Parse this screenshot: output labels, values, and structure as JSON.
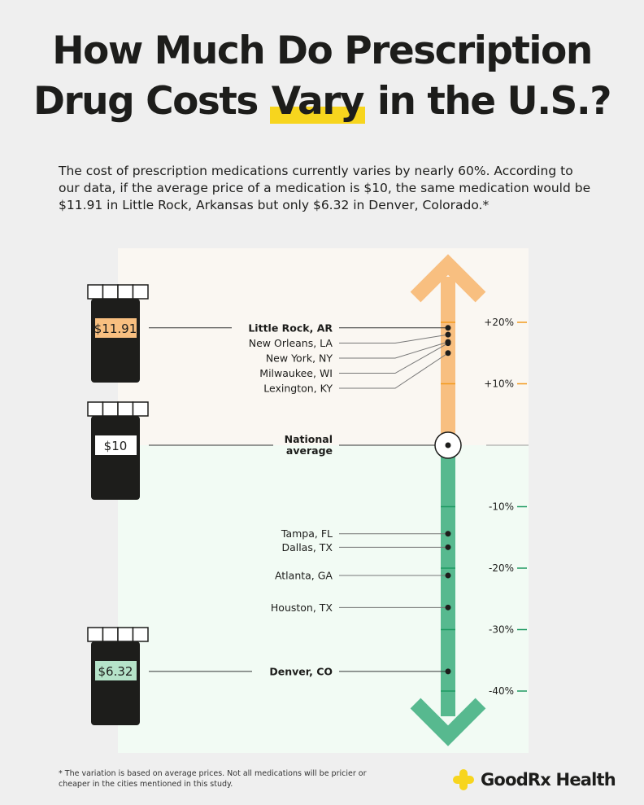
{
  "header": {
    "title_line1": "How Much Do Prescription",
    "title_line2_pre": "Drug Costs ",
    "title_highlight": "Vary",
    "title_line2_post": " in the U.S.?",
    "subtitle": "The cost of prescription medications currently varies by nearly 60%. According to our data, if the average price of a medication is $10, the same medication would be $11.91 in Little Rock, Arkansas but only $6.32 in Denver, Colorado.*"
  },
  "chart_data": {
    "type": "scatter",
    "axis": "percent difference from national average",
    "ylim": [
      -48,
      30
    ],
    "ticks": [
      {
        "value": 20,
        "label": "+20%"
      },
      {
        "value": 10,
        "label": "+10%"
      },
      {
        "value": -10,
        "label": "-10%"
      },
      {
        "value": -20,
        "label": "-20%"
      },
      {
        "value": -30,
        "label": "-30%"
      },
      {
        "value": -40,
        "label": "-40%"
      }
    ],
    "baseline": {
      "label_line1": "National",
      "label_line2": "average",
      "value": 0,
      "price": "$10"
    },
    "points": [
      {
        "city": "Little Rock, AR",
        "value": 19.1,
        "bold": true,
        "price": "$11.91"
      },
      {
        "city": "New Orleans, LA",
        "value": 18.0
      },
      {
        "city": "New York, NY",
        "value": 16.8
      },
      {
        "city": "Milwaukee, WI",
        "value": 16.6
      },
      {
        "city": "Lexington, KY",
        "value": 15.0
      },
      {
        "city": "Tampa, FL",
        "value": -14.4
      },
      {
        "city": "Dallas, TX",
        "value": -16.6
      },
      {
        "city": "Atlanta, GA",
        "value": -21.2
      },
      {
        "city": "Houston, TX",
        "value": -26.4
      },
      {
        "city": "Denver, CO",
        "value": -36.8,
        "bold": true,
        "price": "$6.32"
      }
    ],
    "colors": {
      "above": "#f8bf80",
      "below": "#57b98f",
      "above_bg": "#faf7f2",
      "below_bg": "#f2fbf4",
      "tick_above": "#f39a1e",
      "tick_below": "#1f9a62"
    }
  },
  "footer": {
    "footnote": "* The variation is based on average prices. Not all medications will be pricier or cheaper in the cities mentioned in this study.",
    "brand": "GoodRx Health",
    "brand_color": "#f7d51e"
  }
}
